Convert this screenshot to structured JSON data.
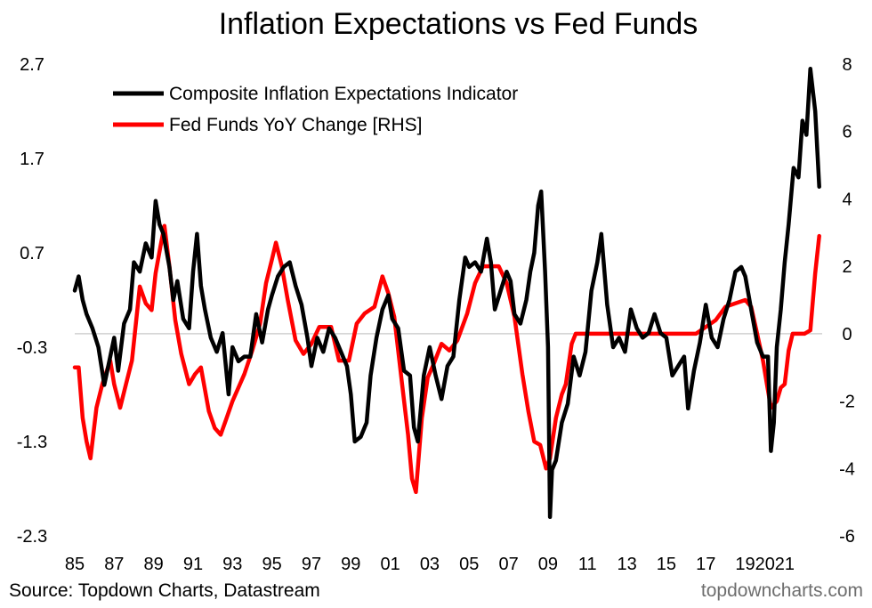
{
  "chart_data": {
    "type": "line",
    "title": "Inflation Expectations vs Fed Funds",
    "source": "Source: Topdown Charts, Datastream",
    "watermark": "topdowncharts.com",
    "x_range": [
      1985.0,
      2022.9
    ],
    "x_tick_labels": [
      "85",
      "87",
      "89",
      "91",
      "93",
      "95",
      "97",
      "99",
      "01",
      "03",
      "05",
      "07",
      "09",
      "11",
      "13",
      "15",
      "17",
      "19",
      "20",
      "21"
    ],
    "x_tick_years": [
      1985,
      1987,
      1989,
      1991,
      1993,
      1995,
      1997,
      1999,
      2001,
      2003,
      2005,
      2007,
      2009,
      2011,
      2013,
      2015,
      2017,
      2019,
      2020,
      2021
    ],
    "left_axis": {
      "ylim": [
        -2.3,
        2.7
      ],
      "ticks": [
        "2.7",
        "1.7",
        "0.7",
        "-0.3",
        "-1.3",
        "-2.3"
      ],
      "tick_values": [
        2.7,
        1.7,
        0.7,
        -0.3,
        -1.3,
        -2.3
      ]
    },
    "right_axis": {
      "ylim": [
        -6,
        8
      ],
      "ticks": [
        "8",
        "6",
        "4",
        "2",
        "0",
        "-2",
        "-4",
        "-6"
      ],
      "tick_values": [
        8,
        6,
        4,
        2,
        0,
        -2,
        -4,
        -6
      ]
    },
    "zero_line": true,
    "legend_position": "top-left",
    "series": [
      {
        "name": "Composite Inflation Expectations Indicator",
        "axis": "left",
        "color": "#000000",
        "points": [
          [
            1985.0,
            0.3
          ],
          [
            1985.2,
            0.45
          ],
          [
            1985.4,
            0.2
          ],
          [
            1985.6,
            0.05
          ],
          [
            1985.9,
            -0.1
          ],
          [
            1986.2,
            -0.3
          ],
          [
            1986.5,
            -0.7
          ],
          [
            1986.8,
            -0.4
          ],
          [
            1987.0,
            -0.2
          ],
          [
            1987.2,
            -0.55
          ],
          [
            1987.5,
            -0.05
          ],
          [
            1987.8,
            0.1
          ],
          [
            1988.0,
            0.6
          ],
          [
            1988.3,
            0.5
          ],
          [
            1988.6,
            0.8
          ],
          [
            1988.9,
            0.65
          ],
          [
            1989.1,
            1.25
          ],
          [
            1989.3,
            1.0
          ],
          [
            1989.5,
            0.9
          ],
          [
            1989.8,
            0.55
          ],
          [
            1990.0,
            0.2
          ],
          [
            1990.2,
            0.4
          ],
          [
            1990.5,
            0.0
          ],
          [
            1990.8,
            -0.1
          ],
          [
            1991.0,
            0.5
          ],
          [
            1991.2,
            0.9
          ],
          [
            1991.4,
            0.35
          ],
          [
            1991.6,
            0.1
          ],
          [
            1991.9,
            -0.2
          ],
          [
            1992.2,
            -0.35
          ],
          [
            1992.5,
            -0.15
          ],
          [
            1992.8,
            -0.8
          ],
          [
            1993.0,
            -0.3
          ],
          [
            1993.3,
            -0.45
          ],
          [
            1993.6,
            -0.4
          ],
          [
            1993.9,
            -0.4
          ],
          [
            1994.2,
            0.05
          ],
          [
            1994.5,
            -0.25
          ],
          [
            1994.8,
            0.1
          ],
          [
            1995.0,
            0.25
          ],
          [
            1995.3,
            0.45
          ],
          [
            1995.6,
            0.55
          ],
          [
            1995.9,
            0.6
          ],
          [
            1996.2,
            0.35
          ],
          [
            1996.5,
            0.15
          ],
          [
            1996.8,
            -0.2
          ],
          [
            1997.0,
            -0.5
          ],
          [
            1997.3,
            -0.2
          ],
          [
            1997.6,
            -0.35
          ],
          [
            1997.9,
            -0.1
          ],
          [
            1998.2,
            -0.2
          ],
          [
            1998.5,
            -0.35
          ],
          [
            1998.8,
            -0.5
          ],
          [
            1999.0,
            -0.8
          ],
          [
            1999.2,
            -1.3
          ],
          [
            1999.5,
            -1.25
          ],
          [
            1999.8,
            -1.1
          ],
          [
            2000.0,
            -0.6
          ],
          [
            2000.3,
            -0.2
          ],
          [
            2000.6,
            0.1
          ],
          [
            2000.9,
            0.25
          ],
          [
            2001.1,
            0.0
          ],
          [
            2001.4,
            -0.1
          ],
          [
            2001.7,
            -0.55
          ],
          [
            2002.0,
            -0.6
          ],
          [
            2002.2,
            -1.15
          ],
          [
            2002.4,
            -1.3
          ],
          [
            2002.7,
            -0.6
          ],
          [
            2003.0,
            -0.3
          ],
          [
            2003.3,
            -0.6
          ],
          [
            2003.6,
            -0.85
          ],
          [
            2003.9,
            -0.5
          ],
          [
            2004.2,
            -0.4
          ],
          [
            2004.5,
            0.2
          ],
          [
            2004.8,
            0.65
          ],
          [
            2005.0,
            0.55
          ],
          [
            2005.3,
            0.6
          ],
          [
            2005.6,
            0.5
          ],
          [
            2005.9,
            0.85
          ],
          [
            2006.1,
            0.6
          ],
          [
            2006.3,
            0.1
          ],
          [
            2006.6,
            0.3
          ],
          [
            2006.9,
            0.5
          ],
          [
            2007.1,
            0.4
          ],
          [
            2007.3,
            0.05
          ],
          [
            2007.6,
            -0.05
          ],
          [
            2007.9,
            0.2
          ],
          [
            2008.1,
            0.5
          ],
          [
            2008.3,
            0.7
          ],
          [
            2008.5,
            1.2
          ],
          [
            2008.65,
            1.35
          ],
          [
            2008.85,
            0.5
          ],
          [
            2009.0,
            -0.3
          ],
          [
            2009.1,
            -2.1
          ],
          [
            2009.2,
            -1.6
          ],
          [
            2009.4,
            -1.5
          ],
          [
            2009.7,
            -1.1
          ],
          [
            2010.0,
            -0.9
          ],
          [
            2010.3,
            -0.4
          ],
          [
            2010.6,
            -0.6
          ],
          [
            2010.9,
            -0.35
          ],
          [
            2011.2,
            0.3
          ],
          [
            2011.5,
            0.6
          ],
          [
            2011.7,
            0.9
          ],
          [
            2012.0,
            0.15
          ],
          [
            2012.3,
            -0.3
          ],
          [
            2012.6,
            -0.2
          ],
          [
            2012.9,
            -0.35
          ],
          [
            2013.2,
            0.1
          ],
          [
            2013.5,
            -0.1
          ],
          [
            2013.8,
            -0.2
          ],
          [
            2014.1,
            -0.15
          ],
          [
            2014.4,
            0.05
          ],
          [
            2014.7,
            -0.15
          ],
          [
            2015.0,
            -0.2
          ],
          [
            2015.3,
            -0.6
          ],
          [
            2015.6,
            -0.5
          ],
          [
            2015.9,
            -0.4
          ],
          [
            2016.1,
            -0.95
          ],
          [
            2016.4,
            -0.55
          ],
          [
            2016.7,
            -0.25
          ],
          [
            2017.0,
            0.15
          ],
          [
            2017.3,
            -0.2
          ],
          [
            2017.6,
            -0.3
          ],
          [
            2017.9,
            0.0
          ],
          [
            2018.2,
            0.2
          ],
          [
            2018.5,
            0.5
          ],
          [
            2018.8,
            0.55
          ],
          [
            2019.0,
            0.45
          ],
          [
            2019.3,
            0.1
          ],
          [
            2019.6,
            -0.25
          ],
          [
            2019.9,
            -0.4
          ],
          [
            2020.15,
            -0.4
          ],
          [
            2020.3,
            -1.4
          ],
          [
            2020.45,
            -1.1
          ],
          [
            2020.6,
            -0.3
          ],
          [
            2020.8,
            0.1
          ],
          [
            2021.0,
            0.6
          ],
          [
            2021.2,
            1.0
          ],
          [
            2021.45,
            1.6
          ],
          [
            2021.7,
            1.5
          ],
          [
            2021.9,
            2.1
          ],
          [
            2022.1,
            1.95
          ],
          [
            2022.3,
            2.65
          ],
          [
            2022.55,
            2.2
          ],
          [
            2022.75,
            1.4
          ]
        ]
      },
      {
        "name": "Fed Funds YoY Change [RHS]",
        "axis": "right",
        "color": "#ff0000",
        "points": [
          [
            1985.0,
            -1.0
          ],
          [
            1985.2,
            -1.0
          ],
          [
            1985.4,
            -2.5
          ],
          [
            1985.6,
            -3.2
          ],
          [
            1985.8,
            -3.7
          ],
          [
            1986.1,
            -2.2
          ],
          [
            1986.4,
            -1.5
          ],
          [
            1986.8,
            -0.8
          ],
          [
            1987.0,
            -1.5
          ],
          [
            1987.3,
            -2.2
          ],
          [
            1987.6,
            -1.5
          ],
          [
            1987.9,
            -0.8
          ],
          [
            1988.3,
            1.4
          ],
          [
            1988.6,
            0.9
          ],
          [
            1988.9,
            0.7
          ],
          [
            1989.1,
            1.8
          ],
          [
            1989.35,
            2.6
          ],
          [
            1989.55,
            3.2
          ],
          [
            1989.8,
            2.0
          ],
          [
            1990.1,
            0.4
          ],
          [
            1990.4,
            -0.6
          ],
          [
            1990.8,
            -1.5
          ],
          [
            1991.1,
            -1.2
          ],
          [
            1991.4,
            -1.0
          ],
          [
            1991.8,
            -2.3
          ],
          [
            1992.1,
            -2.8
          ],
          [
            1992.4,
            -3.0
          ],
          [
            1992.7,
            -2.5
          ],
          [
            1993.0,
            -2.0
          ],
          [
            1993.3,
            -1.6
          ],
          [
            1993.6,
            -1.2
          ],
          [
            1994.0,
            -0.5
          ],
          [
            1994.4,
            0.3
          ],
          [
            1994.7,
            1.5
          ],
          [
            1995.0,
            2.2
          ],
          [
            1995.2,
            2.7
          ],
          [
            1995.5,
            2.0
          ],
          [
            1995.8,
            1.0
          ],
          [
            1996.2,
            -0.2
          ],
          [
            1996.6,
            -0.6
          ],
          [
            1997.0,
            -0.3
          ],
          [
            1997.4,
            0.2
          ],
          [
            1998.0,
            0.2
          ],
          [
            1998.4,
            -0.8
          ],
          [
            1998.9,
            -0.8
          ],
          [
            1999.3,
            0.3
          ],
          [
            1999.7,
            0.6
          ],
          [
            2000.2,
            0.8
          ],
          [
            2000.6,
            1.7
          ],
          [
            2000.9,
            1.2
          ],
          [
            2001.2,
            0.5
          ],
          [
            2001.6,
            -1.5
          ],
          [
            2001.9,
            -3.0
          ],
          [
            2002.1,
            -4.3
          ],
          [
            2002.3,
            -4.7
          ],
          [
            2002.6,
            -2.5
          ],
          [
            2002.9,
            -1.3
          ],
          [
            2003.2,
            -0.9
          ],
          [
            2003.6,
            -0.3
          ],
          [
            2004.0,
            -0.5
          ],
          [
            2004.4,
            -0.2
          ],
          [
            2004.9,
            0.6
          ],
          [
            2005.3,
            1.5
          ],
          [
            2005.7,
            2.0
          ],
          [
            2006.1,
            2.0
          ],
          [
            2006.5,
            2.0
          ],
          [
            2006.9,
            1.5
          ],
          [
            2007.3,
            0.5
          ],
          [
            2007.7,
            -1.2
          ],
          [
            2008.0,
            -2.3
          ],
          [
            2008.3,
            -3.2
          ],
          [
            2008.6,
            -3.3
          ],
          [
            2008.9,
            -4.0
          ],
          [
            2009.1,
            -3.7
          ],
          [
            2009.4,
            -2.5
          ],
          [
            2009.7,
            -1.8
          ],
          [
            2009.9,
            -1.5
          ],
          [
            2010.2,
            -0.3
          ],
          [
            2010.4,
            0.0
          ],
          [
            2014.0,
            0.0
          ],
          [
            2016.5,
            0.0
          ],
          [
            2017.0,
            0.2
          ],
          [
            2017.5,
            0.4
          ],
          [
            2018.0,
            0.8
          ],
          [
            2018.5,
            0.9
          ],
          [
            2019.0,
            1.0
          ],
          [
            2019.3,
            0.8
          ],
          [
            2019.6,
            0.0
          ],
          [
            2019.9,
            -0.8
          ],
          [
            2020.1,
            -1.5
          ],
          [
            2020.3,
            -2.2
          ],
          [
            2020.6,
            -2.0
          ],
          [
            2020.8,
            -1.6
          ],
          [
            2021.0,
            -1.5
          ],
          [
            2021.2,
            -0.5
          ],
          [
            2021.4,
            0.0
          ],
          [
            2022.0,
            0.0
          ],
          [
            2022.3,
            0.1
          ],
          [
            2022.55,
            1.8
          ],
          [
            2022.75,
            2.9
          ]
        ]
      }
    ]
  }
}
